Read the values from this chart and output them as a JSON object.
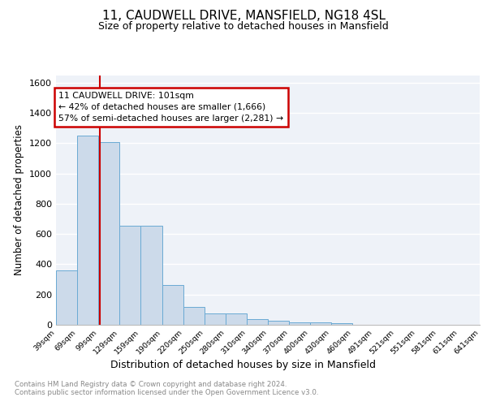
{
  "title1": "11, CAUDWELL DRIVE, MANSFIELD, NG18 4SL",
  "title2": "Size of property relative to detached houses in Mansfield",
  "xlabel": "Distribution of detached houses by size in Mansfield",
  "ylabel": "Number of detached properties",
  "footnote": "Contains HM Land Registry data © Crown copyright and database right 2024.\nContains public sector information licensed under the Open Government Licence v3.0.",
  "bar_edges": [
    39,
    69,
    99,
    129,
    159,
    190,
    220,
    250,
    280,
    310,
    340,
    370,
    400,
    430,
    460,
    491,
    521,
    551,
    581,
    611,
    641
  ],
  "bar_heights": [
    360,
    1250,
    1210,
    655,
    655,
    265,
    120,
    75,
    75,
    35,
    25,
    15,
    15,
    10,
    0,
    0,
    0,
    0,
    0,
    0
  ],
  "bar_color": "#ccdaea",
  "bar_edge_color": "#6aaad4",
  "red_line_x": 101,
  "ylim": [
    0,
    1650
  ],
  "yticks": [
    0,
    200,
    400,
    600,
    800,
    1000,
    1200,
    1400,
    1600
  ],
  "annotation_text": "11 CAUDWELL DRIVE: 101sqm\n← 42% of detached houses are smaller (1,666)\n57% of semi-detached houses are larger (2,281) →",
  "annotation_box_color": "#ffffff",
  "annotation_box_edge": "#cc0000",
  "background_color": "#eef2f8",
  "grid_color": "#ffffff",
  "footnote_color": "#888888"
}
